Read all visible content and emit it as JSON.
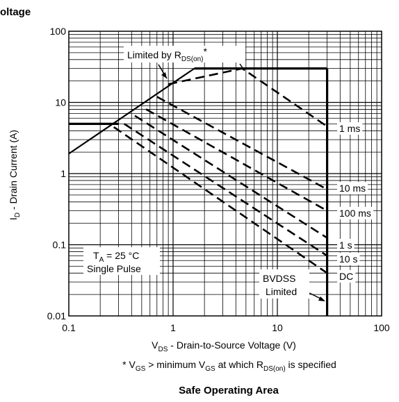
{
  "header_fragment": "oltage",
  "chart_data": {
    "type": "line",
    "title": "Safe Operating Area",
    "xlabel": {
      "main": "V",
      "sub": "DS",
      "rest": " - Drain-to-Source Voltage (V)"
    },
    "ylabel": {
      "main": "I",
      "sub": "D",
      "rest": " - Drain Current (A)"
    },
    "footnote": {
      "p1": "* V",
      "s1": "GS",
      "p2": " > minimum V",
      "s2": "GS",
      "p3": " at which R",
      "s3": "DS(on)",
      "p4": " is specified"
    },
    "xscale": "log",
    "yscale": "log",
    "xlim": [
      0.1,
      100
    ],
    "ylim": [
      0.01,
      100
    ],
    "x_ticks": [
      "0.1",
      "1",
      "10",
      "100"
    ],
    "y_ticks": [
      "0.01",
      "0.1",
      "1",
      "10",
      "100"
    ],
    "grid": true,
    "limit_boundary": {
      "name": "Limited by RDS(on)*",
      "label_main": "Limited by R",
      "label_sub": "DS(on)",
      "label_star": "*",
      "x": [
        0.1,
        1.6
      ],
      "y": [
        1.9,
        30
      ]
    },
    "current_limits": [
      {
        "x": [
          0.1,
          0.3
        ],
        "y": [
          5,
          5
        ]
      },
      {
        "x": [
          1.6,
          30
        ],
        "y": [
          30,
          30
        ]
      }
    ],
    "bvdss_limit": {
      "x": [
        30,
        30
      ],
      "y": [
        30,
        0.01
      ],
      "label_line1": "BVDSS",
      "label_line2": "Limited"
    },
    "series": [
      {
        "name": "1 ms",
        "x": [
          0.9,
          4.6,
          30
        ],
        "y": [
          18,
          30,
          4.6
        ]
      },
      {
        "name": "10 ms",
        "x": [
          0.7,
          30
        ],
        "y": [
          12,
          0.6
        ]
      },
      {
        "name": "100 ms",
        "x": [
          0.55,
          30
        ],
        "y": [
          8,
          0.3
        ]
      },
      {
        "name": "1 s",
        "x": [
          0.43,
          30
        ],
        "y": [
          6.5,
          0.125
        ]
      },
      {
        "name": "10 s",
        "x": [
          0.34,
          30
        ],
        "y": [
          5,
          0.07
        ]
      },
      {
        "name": "DC",
        "x": [
          0.27,
          30
        ],
        "y": [
          4.5,
          0.04
        ]
      }
    ],
    "annotation": {
      "tline1_main": "T",
      "tline1_sub": "A",
      "tline1_rest": " = 25 °C",
      "tline2": "Single Pulse"
    }
  }
}
